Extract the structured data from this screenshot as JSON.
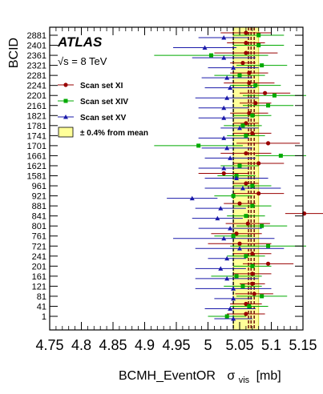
{
  "chart_data": {
    "type": "scatter",
    "title": "ATLAS",
    "subtitle": "√s = 8 TeV",
    "xlabel_main": "BCMH_EventOR",
    "xlabel_sigma": "σ",
    "xlabel_sub": "vis",
    "xlabel_unit": "[mb]",
    "ylabel": "BCID",
    "xlim": [
      4.75,
      5.15
    ],
    "x_ticks": [
      "4.75",
      "4.8",
      "4.85",
      "4.9",
      "4.95",
      "5",
      "5.05",
      "5.1",
      "5.15"
    ],
    "x_tick_values": [
      4.75,
      4.8,
      4.85,
      4.9,
      4.95,
      5.0,
      5.05,
      5.1,
      5.15
    ],
    "categories": [
      "1",
      "41",
      "81",
      "121",
      "161",
      "201",
      "241",
      "721",
      "761",
      "801",
      "841",
      "881",
      "921",
      "961",
      "1581",
      "1621",
      "1661",
      "1701",
      "1741",
      "1781",
      "1821",
      "2161",
      "2201",
      "2241",
      "2281",
      "2321",
      "2361",
      "2401",
      "2881"
    ],
    "y_ticks_labeled": [
      "1",
      "41",
      "81",
      "121",
      "161",
      "201",
      "241",
      "721",
      "761",
      "801",
      "841",
      "881",
      "921",
      "961",
      "1581",
      "1621",
      "1661",
      "1701",
      "1741",
      "1781",
      "1821",
      "2161",
      "2201",
      "2241",
      "2281",
      "2321",
      "2361",
      "2401",
      "2881"
    ],
    "mean": 5.06,
    "band_percent": 0.4,
    "band": [
      5.04,
      5.08
    ],
    "dashed_lines": [
      5.04,
      5.064,
      5.068,
      5.073
    ],
    "colors": {
      "XI": "#990000",
      "XIV": "#00aa00",
      "XV": "#1a1aaa",
      "band": "#ffff99",
      "band_edge": "#cccc33"
    },
    "series": [
      {
        "name": "Scan set XI",
        "marker": "circle",
        "color": "#990000",
        "values": [
          5.06,
          5.06,
          5.073,
          5.07,
          5.07,
          5.095,
          5.07,
          5.05,
          5.045,
          5.063,
          5.152,
          5.05,
          5.08,
          5.06,
          5.025,
          5.08,
          5.06,
          5.095,
          5.07,
          5.06,
          5.065,
          5.075,
          5.09,
          5.065,
          5.065,
          5.055,
          5.06,
          5.06,
          5.06
        ],
        "err": [
          0.03,
          0.025,
          0.03,
          0.02,
          0.03,
          0.04,
          0.03,
          0.05,
          0.04,
          0.035,
          0.03,
          0.025,
          0.04,
          0.02,
          0.04,
          0.04,
          0.04,
          0.05,
          0.03,
          0.02,
          0.03,
          0.025,
          0.04,
          0.04,
          0.03,
          0.02,
          0.05,
          0.03,
          0.04
        ]
      },
      {
        "name": "Scan set XIV",
        "marker": "square",
        "color": "#00aa00",
        "values": [
          5.03,
          5.065,
          5.085,
          5.055,
          5.045,
          5.07,
          5.06,
          5.095,
          5.04,
          5.085,
          5.06,
          5.07,
          5.04,
          5.07,
          5.045,
          5.05,
          5.115,
          4.985,
          5.06,
          5.055,
          5.07,
          5.095,
          5.105,
          5.075,
          5.05,
          5.085,
          5.005,
          5.08,
          5.08
        ],
        "err": [
          0.03,
          0.03,
          0.04,
          0.03,
          0.04,
          0.03,
          0.03,
          0.06,
          0.03,
          0.04,
          0.03,
          0.03,
          0.03,
          0.03,
          0.03,
          0.03,
          0.04,
          0.07,
          0.03,
          0.03,
          0.03,
          0.04,
          0.05,
          0.04,
          0.04,
          0.04,
          0.09,
          0.04,
          0.04
        ]
      },
      {
        "name": "Scan set XV",
        "marker": "triangle",
        "color": "#1a1aaa",
        "values": [
          5.04,
          5.035,
          5.04,
          5.04,
          5.03,
          5.02,
          5.03,
          5.05,
          5.025,
          5.035,
          5.015,
          5.02,
          4.975,
          5.055,
          5.045,
          5.025,
          5.035,
          5.03,
          5.025,
          5.05,
          5.025,
          5.025,
          5.03,
          5.035,
          5.03,
          5.04,
          5.025,
          4.995,
          5.025
        ],
        "err": [
          0.03,
          0.04,
          0.03,
          0.06,
          0.05,
          0.04,
          0.03,
          0.07,
          0.08,
          0.05,
          0.04,
          0.04,
          0.04,
          0.06,
          0.05,
          0.04,
          0.04,
          0.04,
          0.04,
          0.03,
          0.04,
          0.04,
          0.05,
          0.04,
          0.04,
          0.04,
          0.05,
          0.05,
          0.04
        ]
      }
    ],
    "legend_band_label": "± 0.4% from mean",
    "legend_placement": "top-left",
    "grid": false
  }
}
